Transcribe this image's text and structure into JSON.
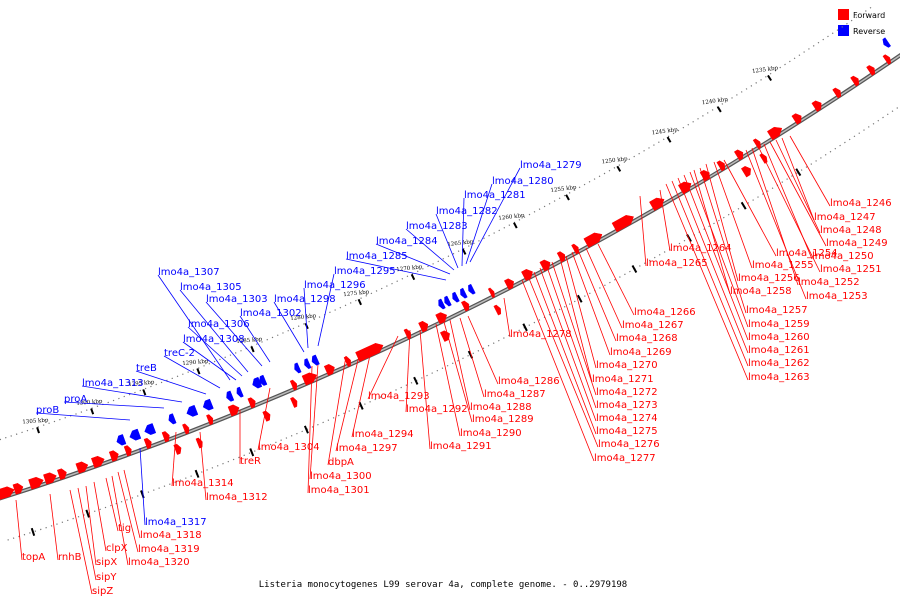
{
  "caption": "Listeria monocytogenes L99 serovar 4a, complete genome. - 0..2979198",
  "legend": {
    "forward_label": "Forward",
    "reverse_label": "Reverse",
    "forward_color": "#ff0000",
    "reverse_color": "#0000ff"
  },
  "scale": {
    "unit": "kbp",
    "tick_labels": [
      "1235 kbp",
      "1240 kbp",
      "1245 kbp",
      "1250 kbp",
      "1255 kbp",
      "1260 kbp",
      "1265 kbp",
      "1270 kbp",
      "1275 kbp",
      "1280 kbp",
      "1285 kbp",
      "1290 kbp",
      "1295 kbp",
      "1300 kbp",
      "1305 kbp"
    ]
  },
  "forward_genes": [
    "lmo4a_1246",
    "lmo4a_1247",
    "lmo4a_1248",
    "lmo4a_1249",
    "lmo4a_1250",
    "lmo4a_1251",
    "lmo4a_1252",
    "lmo4a_1253",
    "lmo4a_1254",
    "lmo4a_1255",
    "lmo4a_1256",
    "lmo4a_1257",
    "lmo4a_1258",
    "lmo4a_1259",
    "lmo4a_1260",
    "lmo4a_1261",
    "lmo4a_1262",
    "lmo4a_1263",
    "lmo4a_1264",
    "lmo4a_1265",
    "lmo4a_1266",
    "lmo4a_1267",
    "lmo4a_1268",
    "lmo4a_1269",
    "lmo4a_1270",
    "lmo4a_1271",
    "lmo4a_1272",
    "lmo4a_1273",
    "lmo4a_1274",
    "lmo4a_1275",
    "lmo4a_1276",
    "lmo4a_1277",
    "lmo4a_1278",
    "lmo4a_1286",
    "lmo4a_1287",
    "lmo4a_1288",
    "lmo4a_1289",
    "lmo4a_1290",
    "lmo4a_1291",
    "lmo4a_1292",
    "lmo4a_1293",
    "lmo4a_1294",
    "lmo4a_1297",
    "dbpA",
    "lmo4a_1300",
    "lmo4a_1301",
    "lmo4a_1304",
    "treR",
    "lmo4a_1314",
    "lmo4a_1312",
    "tig",
    "clpX",
    "sipX",
    "sipY",
    "sipZ",
    "rnhB",
    "topA",
    "lmo4a_1318",
    "lmo4a_1319",
    "lmo4a_1320"
  ],
  "reverse_genes": [
    "lmo4a_1279",
    "lmo4a_1280",
    "lmo4a_1281",
    "lmo4a_1282",
    "lmo4a_1283",
    "lmo4a_1284",
    "lmo4a_1285",
    "lmo4a_1295",
    "lmo4a_1296",
    "lmo4a_1298",
    "lmo4a_1302",
    "lmo4a_1303",
    "lmo4a_1305",
    "lmo4a_1306",
    "lmo4a_1307",
    "lmo4a_1308",
    "treC-2",
    "treB",
    "lmo4a_1313",
    "proA",
    "proB",
    "lmo4a_1317"
  ]
}
